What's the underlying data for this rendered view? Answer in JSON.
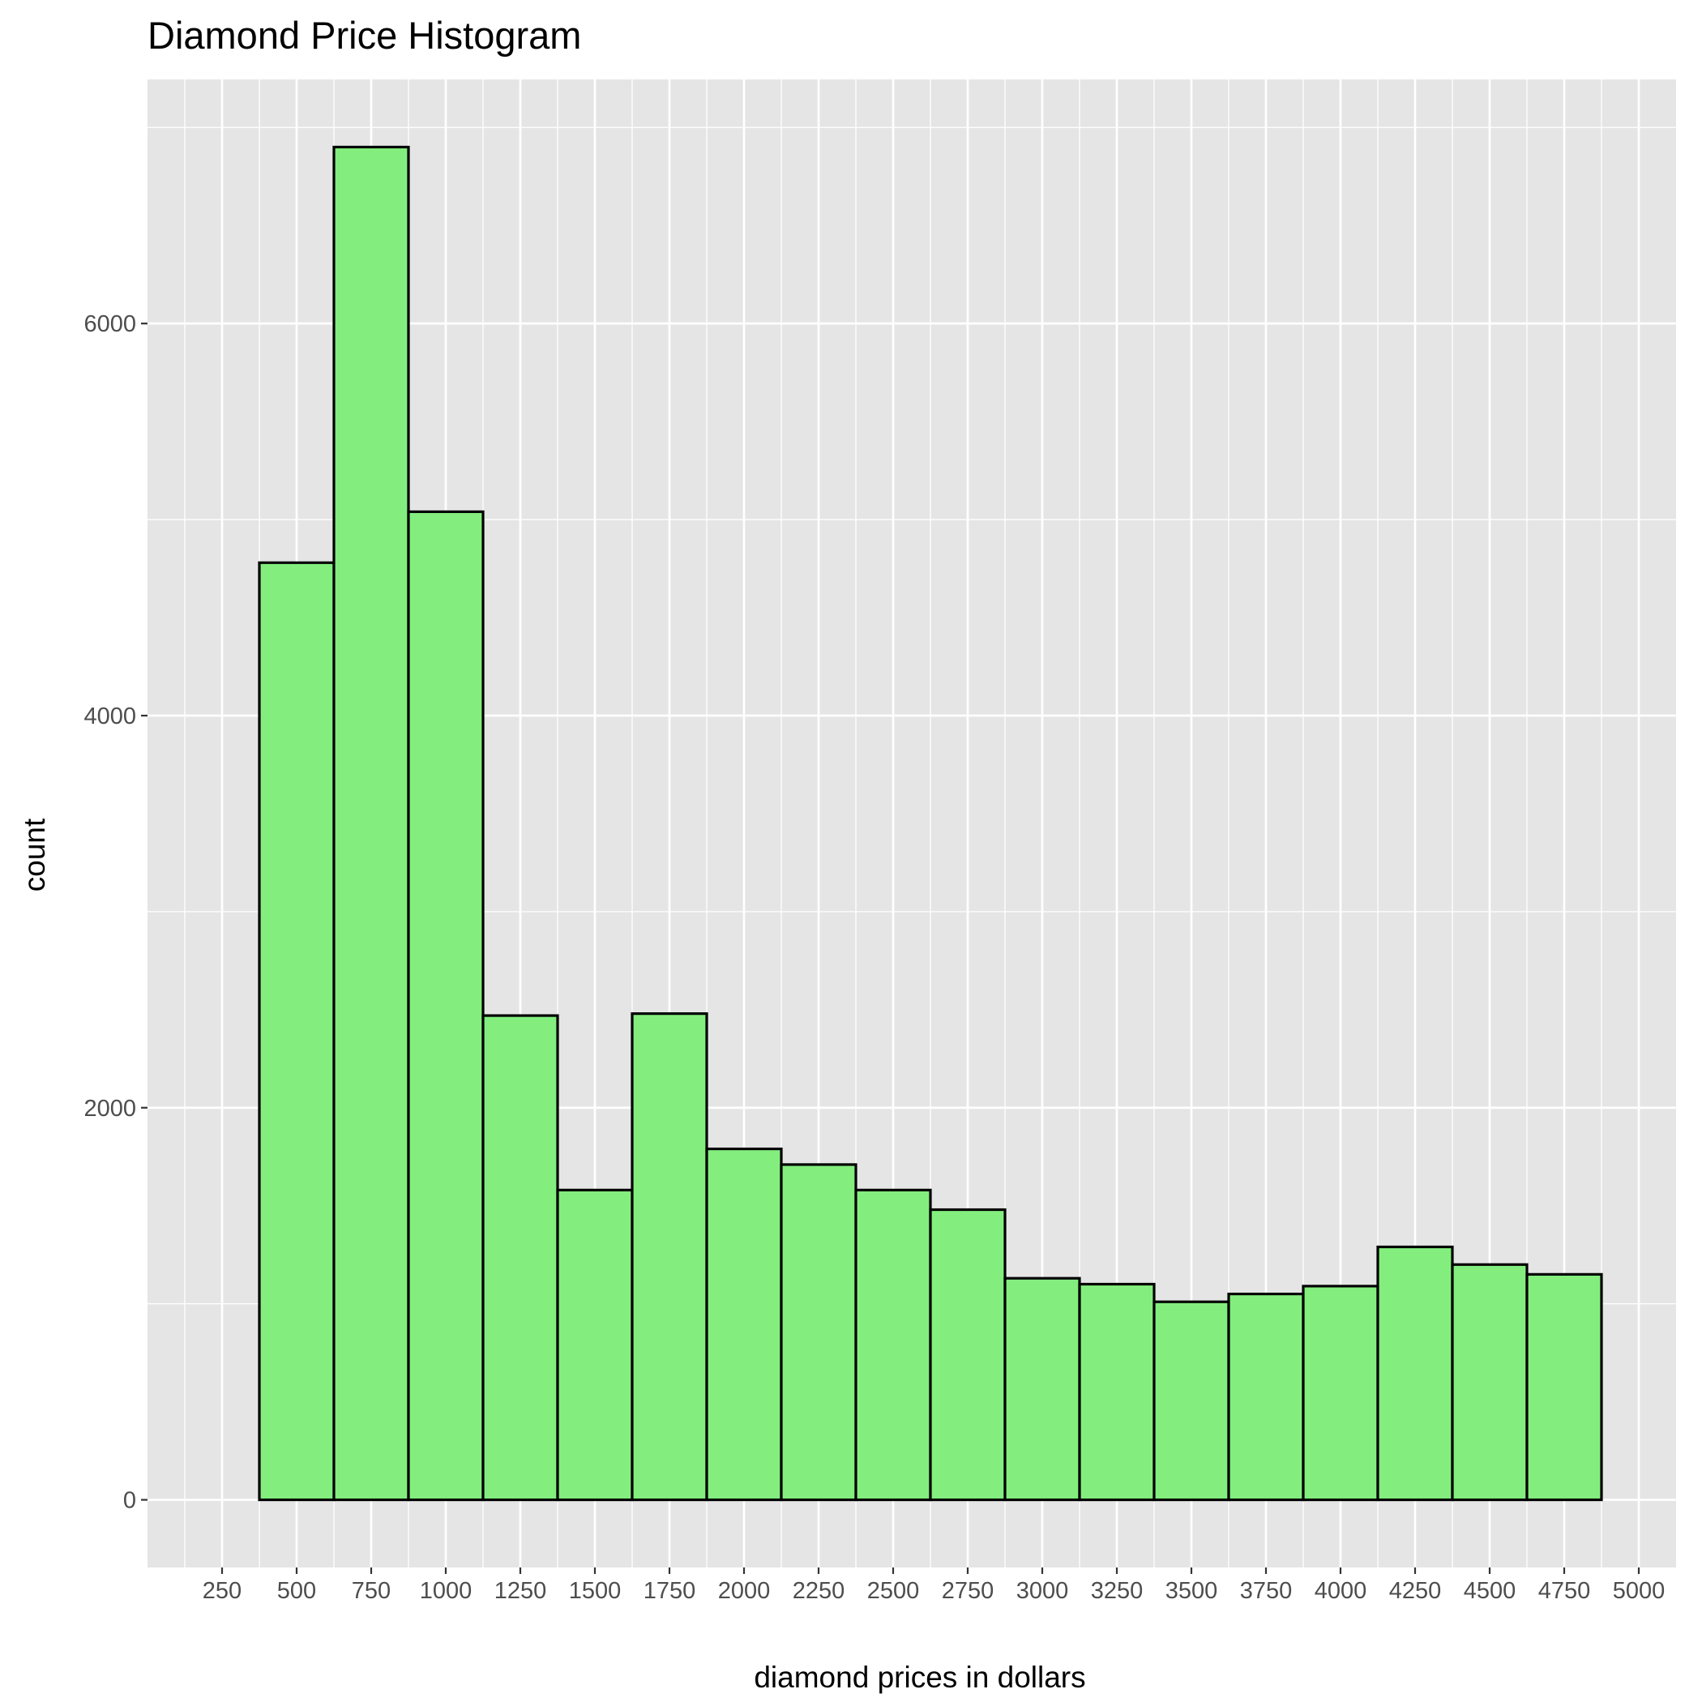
{
  "chart_data": {
    "type": "bar",
    "title": "Diamond Price Histogram",
    "xlabel": "diamond prices in dollars",
    "ylabel": "count",
    "bin_width": 250,
    "bins": [
      {
        "start": 375,
        "end": 625,
        "count": 4780
      },
      {
        "start": 625,
        "end": 875,
        "count": 6900
      },
      {
        "start": 875,
        "end": 1125,
        "count": 5040
      },
      {
        "start": 1125,
        "end": 1375,
        "count": 2470
      },
      {
        "start": 1375,
        "end": 1625,
        "count": 1580
      },
      {
        "start": 1625,
        "end": 1875,
        "count": 2480
      },
      {
        "start": 1875,
        "end": 2125,
        "count": 1790
      },
      {
        "start": 2125,
        "end": 2375,
        "count": 1710
      },
      {
        "start": 2375,
        "end": 2625,
        "count": 1580
      },
      {
        "start": 2625,
        "end": 2875,
        "count": 1480
      },
      {
        "start": 2875,
        "end": 3125,
        "count": 1130
      },
      {
        "start": 3125,
        "end": 3375,
        "count": 1100
      },
      {
        "start": 3375,
        "end": 3625,
        "count": 1010
      },
      {
        "start": 3625,
        "end": 3875,
        "count": 1050
      },
      {
        "start": 3875,
        "end": 4125,
        "count": 1090
      },
      {
        "start": 4125,
        "end": 4375,
        "count": 1290
      },
      {
        "start": 4375,
        "end": 4625,
        "count": 1200
      },
      {
        "start": 4625,
        "end": 4875,
        "count": 1150
      }
    ],
    "x_ticks": [
      250,
      500,
      750,
      1000,
      1250,
      1500,
      1750,
      2000,
      2250,
      2500,
      2750,
      3000,
      3250,
      3500,
      3750,
      4000,
      4250,
      4500,
      4750,
      5000
    ],
    "y_ticks": [
      0,
      2000,
      4000,
      6000
    ],
    "xlim": [
      0,
      5125
    ],
    "ylim": [
      -345,
      7245
    ],
    "grid": true,
    "colors": {
      "bar_fill": "#83ee7e",
      "bar_stroke": "#000000",
      "panel_background": "#e5e5e5",
      "grid_line": "#ffffff"
    }
  }
}
